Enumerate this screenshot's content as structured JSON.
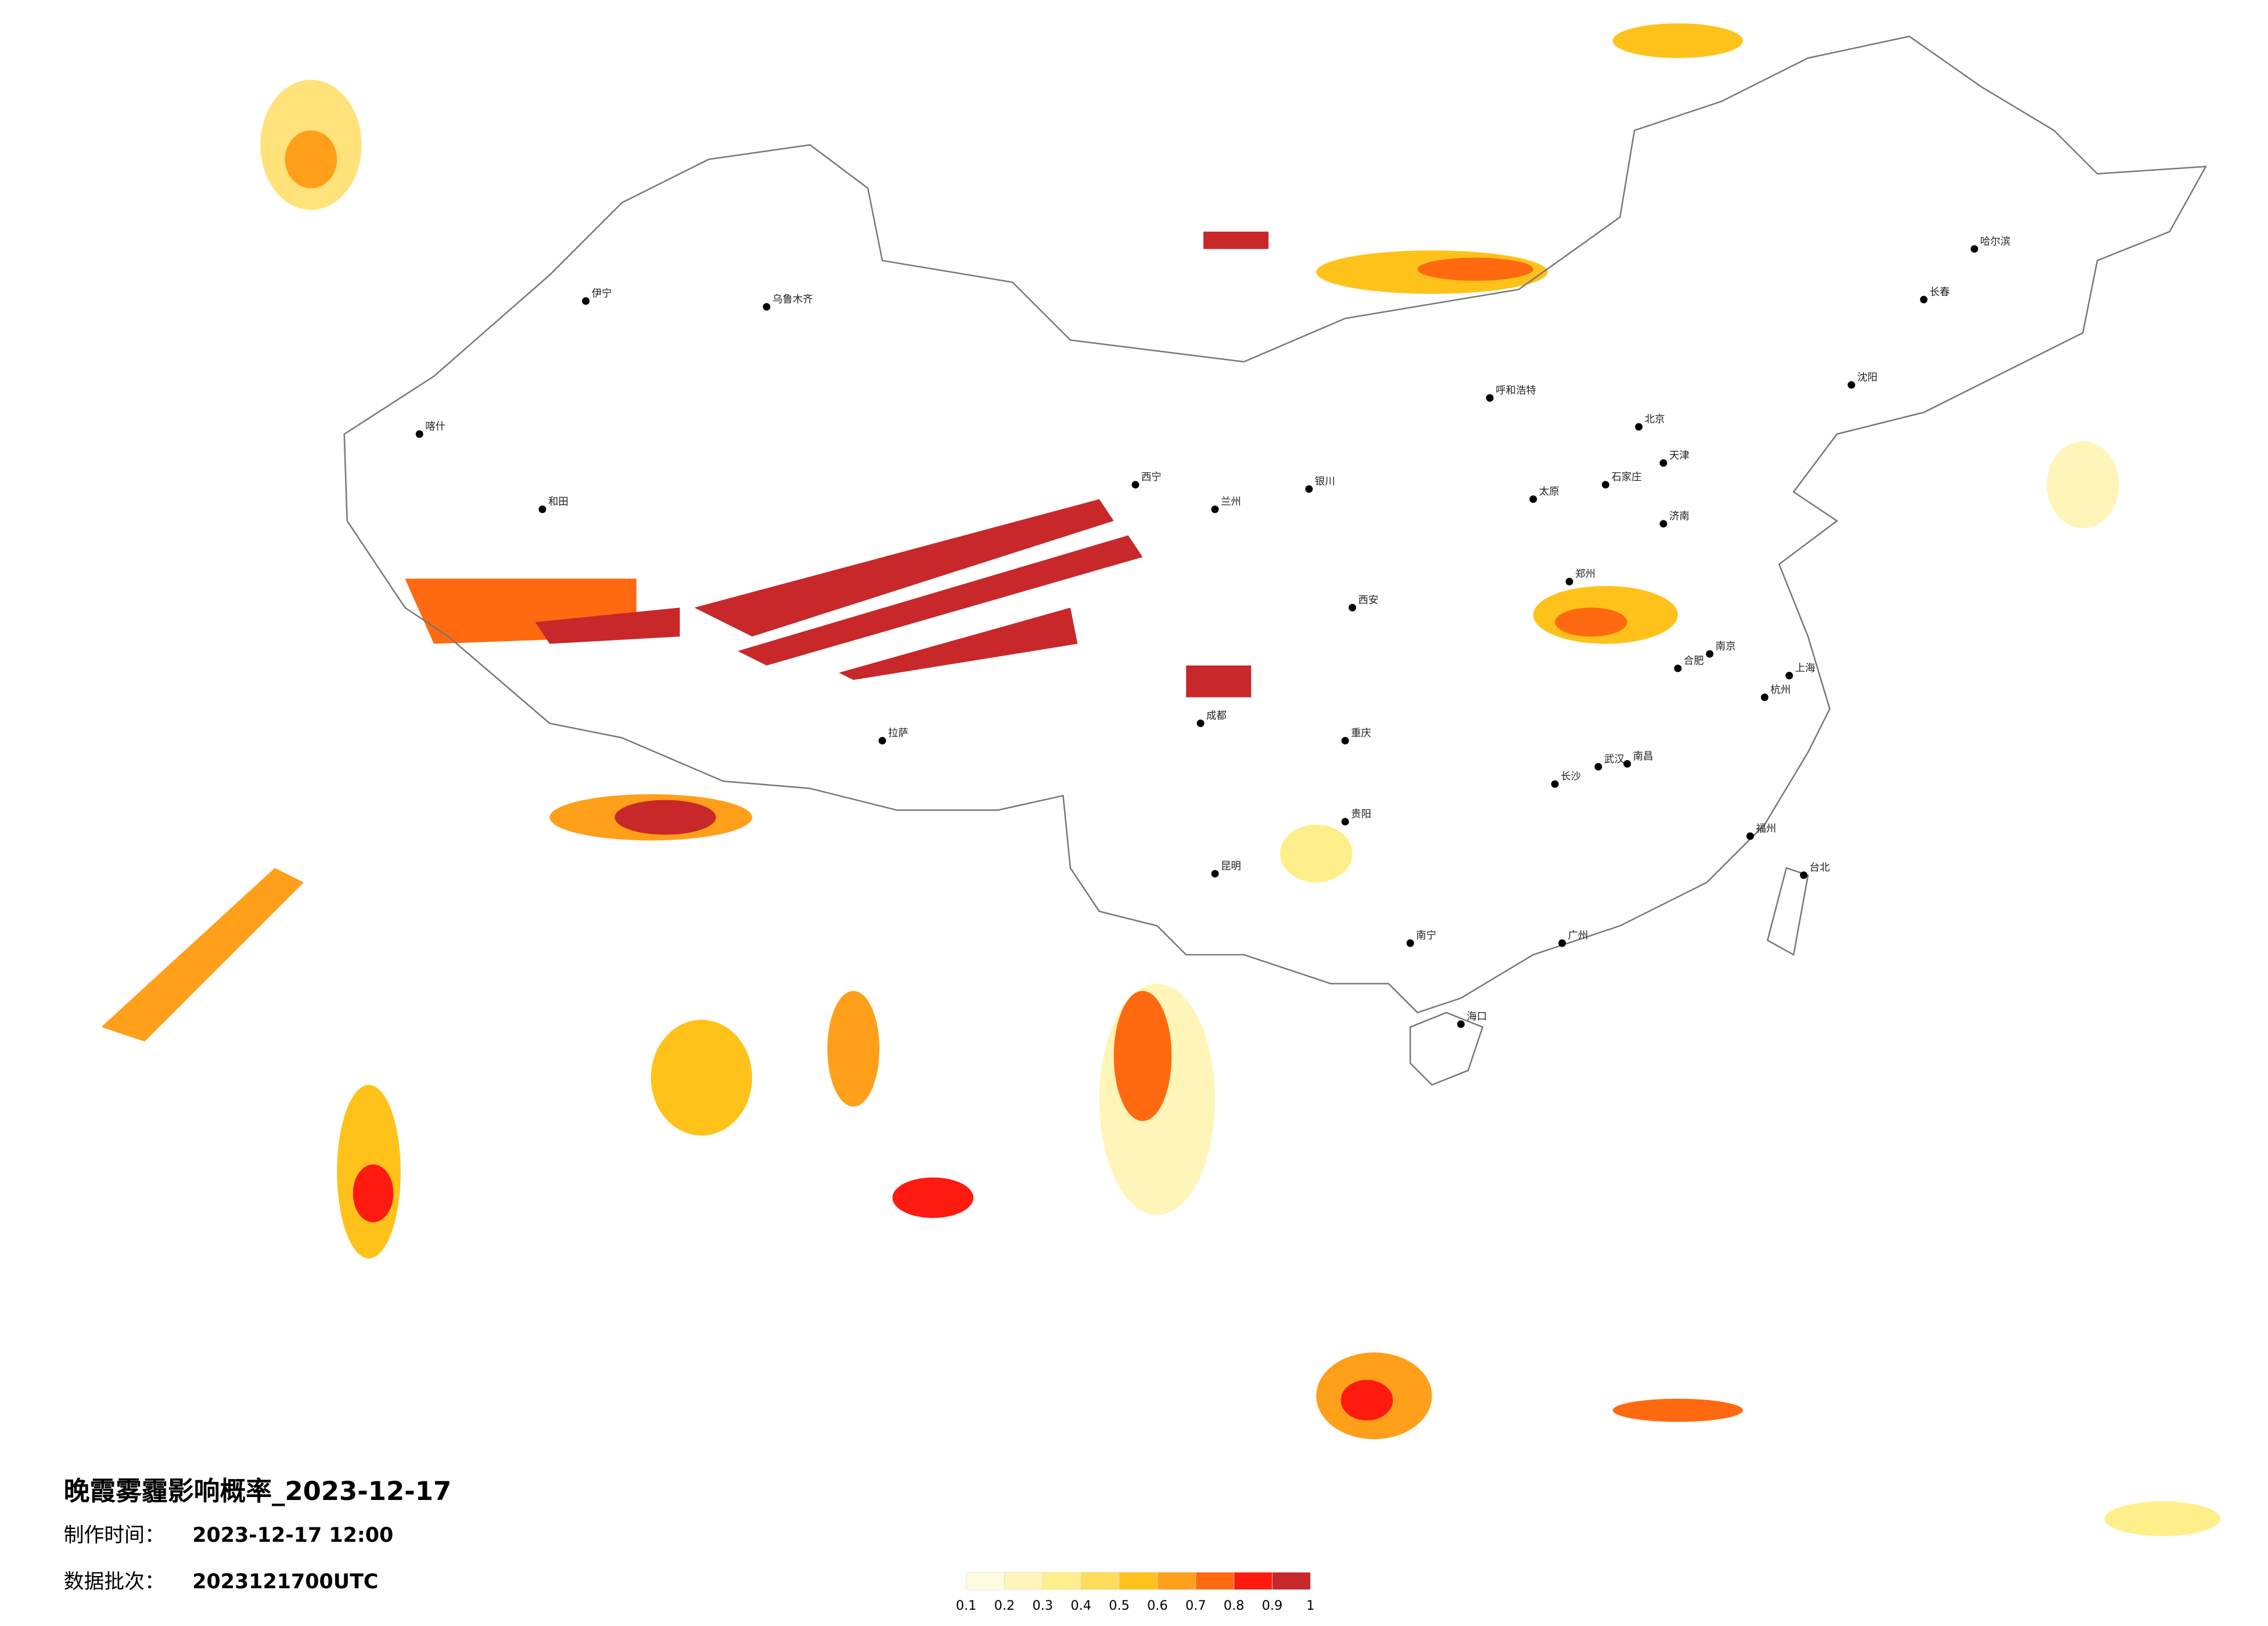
{
  "title": "晚霞雾霾影响概率_2023-12-17",
  "info": [
    {
      "label": "制作时间：",
      "value": "2023-12-17 12:00"
    },
    {
      "label": "数据批次：",
      "value": "2023121700UTC"
    }
  ],
  "legend": {
    "ticks": [
      0.1,
      0.2,
      0.3,
      0.4,
      0.5,
      0.6,
      0.7,
      0.8,
      0.9,
      1
    ],
    "colors": [
      "#fffbe0",
      "#fff5b8",
      "#ffef8a",
      "#ffdc5a",
      "#ffc21a",
      "#ff9f1a",
      "#ff6a10",
      "#ff1a10",
      "#c8282a"
    ]
  },
  "cities": [
    "北京",
    "天津",
    "石家庄",
    "太原",
    "呼和浩特",
    "济南",
    "郑州",
    "西安",
    "银川",
    "兰州",
    "西宁",
    "乌鲁木齐",
    "伊宁",
    "喀什",
    "和田",
    "拉萨",
    "成都",
    "重庆",
    "贵阳",
    "昆明",
    "南宁",
    "广州",
    "海口",
    "长沙",
    "武汉",
    "南昌",
    "福州",
    "台北",
    "杭州",
    "上海",
    "南京",
    "合肥",
    "沈阳",
    "长春",
    "哈尔滨"
  ]
}
